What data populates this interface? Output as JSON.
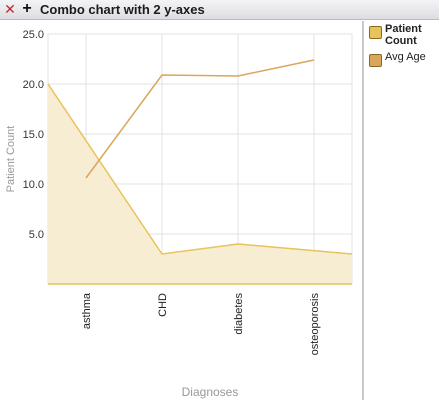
{
  "window": {
    "title": "Combo chart with 2 y-axes",
    "close_icon": "✕",
    "expand_icon": "+"
  },
  "legend": {
    "items": [
      {
        "label": "Patient Count",
        "color": "#e8c35a"
      },
      {
        "label": "Avg Age",
        "color": "#d9a65b"
      }
    ]
  },
  "chart_data": {
    "type": "bar",
    "categories": [
      "asthma",
      "CHD",
      "diabetes",
      "osteoporosis"
    ],
    "xlabel": "Diagnoses",
    "ylabel": "Patient Count",
    "ylim": [
      0,
      25
    ],
    "yticks": [
      "25.0",
      "20.0",
      "15.0",
      "10.0",
      "5.0"
    ],
    "series": [
      {
        "name": "Patient Count",
        "type": "area",
        "values": [
          20,
          3,
          4,
          3
        ],
        "color": "#e8c35a",
        "fill": "#f7edd3"
      },
      {
        "name": "Avg Age",
        "type": "line",
        "values": [
          10.6,
          20.9,
          20.8,
          22.4
        ],
        "color": "#d9a65b"
      }
    ]
  }
}
